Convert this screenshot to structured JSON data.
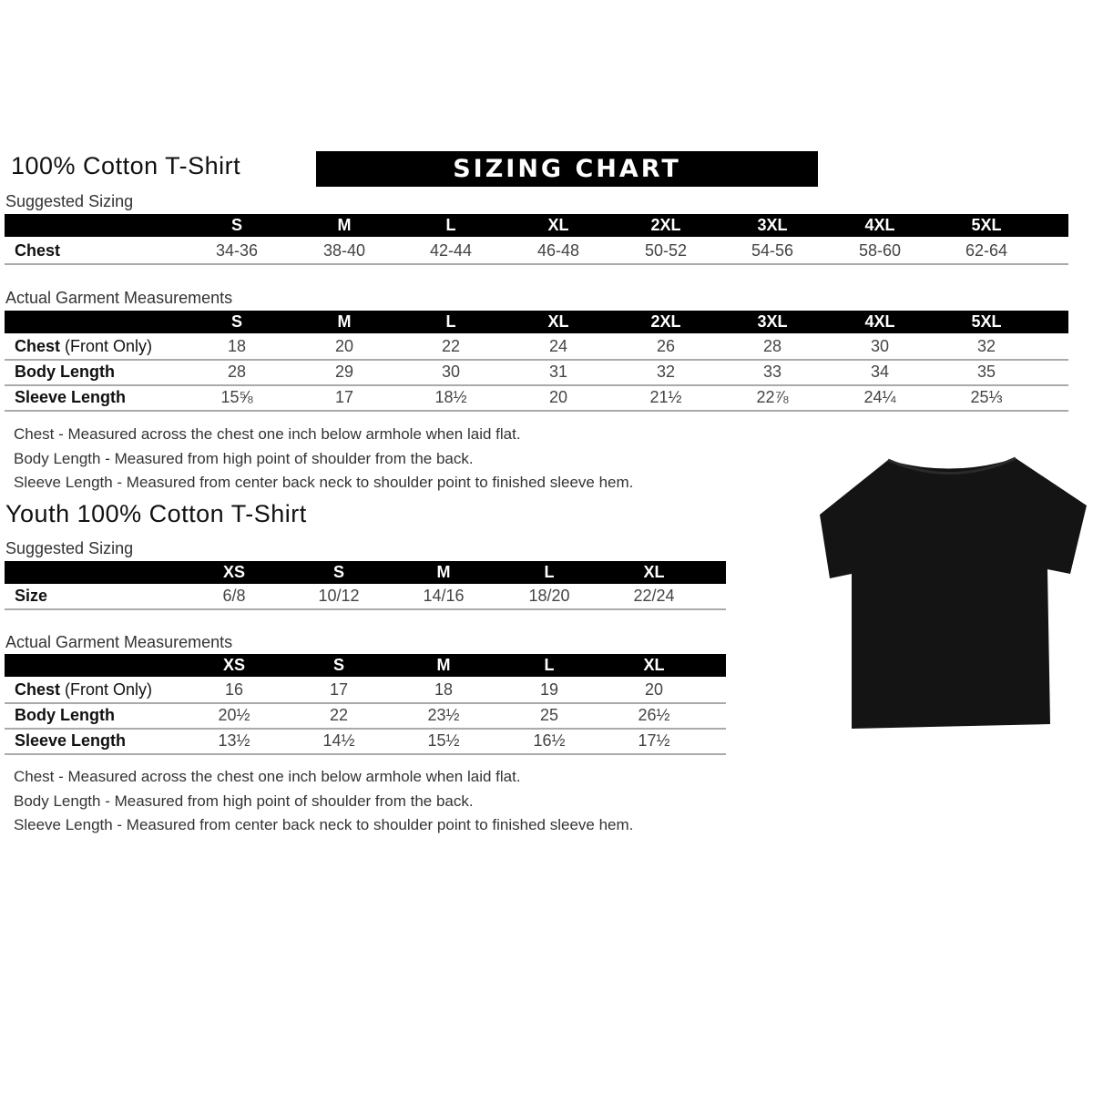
{
  "adult": {
    "title": "100% Cotton T-Shirt",
    "banner": "SIZING CHART",
    "suggested_label": "Suggested Sizing",
    "sizes": [
      "S",
      "M",
      "L",
      "XL",
      "2XL",
      "3XL",
      "4XL",
      "5XL"
    ],
    "suggested_rows": [
      {
        "label": "Chest",
        "label_suffix": "",
        "values": [
          "34-36",
          "38-40",
          "42-44",
          "46-48",
          "50-52",
          "54-56",
          "58-60",
          "62-64"
        ]
      }
    ],
    "actual_label": "Actual Garment Measurements",
    "actual_rows": [
      {
        "label": "Chest",
        "label_suffix": " (Front Only)",
        "values": [
          "18",
          "20",
          "22",
          "24",
          "26",
          "28",
          "30",
          "32"
        ]
      },
      {
        "label": "Body Length",
        "label_suffix": "",
        "values": [
          "28",
          "29",
          "30",
          "31",
          "32",
          "33",
          "34",
          "35"
        ]
      },
      {
        "label": "Sleeve Length",
        "label_suffix": "",
        "values": [
          "15⅝",
          "17",
          "18½",
          "20",
          "21½",
          "22⅞",
          "24¼",
          "25⅓"
        ]
      }
    ],
    "notes": [
      "Chest - Measured across the chest one inch below armhole when laid flat.",
      "Body Length - Measured from high point of shoulder from the back.",
      "Sleeve Length - Measured from center back neck to shoulder point to finished sleeve hem."
    ]
  },
  "youth": {
    "title": "Youth 100% Cotton T-Shirt",
    "suggested_label": "Suggested Sizing",
    "sizes": [
      "XS",
      "S",
      "M",
      "L",
      "XL"
    ],
    "suggested_rows": [
      {
        "label": "Size",
        "label_suffix": "",
        "values": [
          "6/8",
          "10/12",
          "14/16",
          "18/20",
          "22/24"
        ]
      }
    ],
    "actual_label": "Actual Garment Measurements",
    "actual_rows": [
      {
        "label": "Chest",
        "label_suffix": " (Front Only)",
        "values": [
          "16",
          "17",
          "18",
          "19",
          "20"
        ]
      },
      {
        "label": "Body Length",
        "label_suffix": "",
        "values": [
          "20½",
          "22",
          "23½",
          "25",
          "26½"
        ]
      },
      {
        "label": "Sleeve Length",
        "label_suffix": "",
        "values": [
          "13½",
          "14½",
          "15½",
          "16½",
          "17½"
        ]
      }
    ],
    "notes": [
      "Chest - Measured across the chest one inch below armhole when laid flat.",
      "Body Length - Measured from high point of shoulder from the back.",
      "Sleeve Length - Measured from center back neck to shoulder point to finished sleeve hem."
    ]
  },
  "image": {
    "garment": "black t-shirt",
    "color": "#111111"
  }
}
